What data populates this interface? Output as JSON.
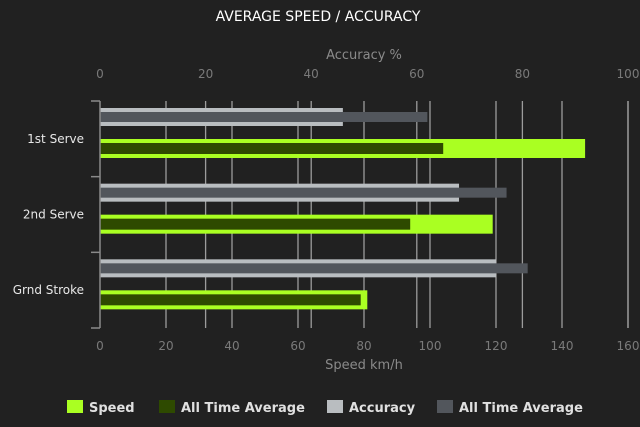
{
  "chart_data": {
    "type": "bar",
    "orientation": "horizontal",
    "title": "AVERAGE SPEED / ACCURACY",
    "categories": [
      "1st Serve",
      "2nd Serve",
      "Grnd Stroke"
    ],
    "axes": {
      "top": {
        "label": "Accuracy %",
        "range": [
          0,
          100
        ],
        "ticks": [
          "0",
          "20",
          "40",
          "60",
          "80",
          "100"
        ]
      },
      "bottom": {
        "label": "Speed km/h",
        "range": [
          0,
          160
        ],
        "ticks": [
          "0",
          "20",
          "40",
          "60",
          "80",
          "100",
          "120",
          "140",
          "160"
        ]
      }
    },
    "grid": true,
    "legend_position": "bottom",
    "series": [
      {
        "name": "Speed",
        "axis": "bottom",
        "color": "#aaff22",
        "values": [
          147,
          119,
          81
        ]
      },
      {
        "name": "All Time Average",
        "axis": "bottom",
        "color": "#2e4a00",
        "values": [
          104,
          94,
          79
        ]
      },
      {
        "name": "Accuracy",
        "axis": "top",
        "color": "#b9bdc0",
        "values": [
          46,
          68,
          75
        ]
      },
      {
        "name": "All Time Average",
        "axis": "top",
        "color": "#52565c",
        "values": [
          62,
          77,
          81
        ]
      }
    ]
  }
}
